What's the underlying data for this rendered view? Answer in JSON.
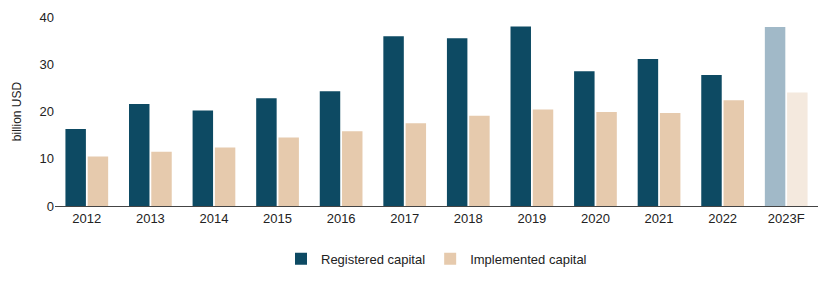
{
  "chart_data": {
    "type": "bar",
    "categories": [
      "2012",
      "2013",
      "2014",
      "2015",
      "2016",
      "2017",
      "2018",
      "2019",
      "2020",
      "2021",
      "2022",
      "2023F"
    ],
    "series": [
      {
        "name": "Registered capital",
        "values": [
          16.3,
          21.6,
          20.2,
          22.8,
          24.3,
          35.9,
          35.5,
          38.0,
          28.5,
          31.1,
          27.7,
          37.9
        ],
        "colors": [
          "#0d4a63",
          "#0d4a63",
          "#0d4a63",
          "#0d4a63",
          "#0d4a63",
          "#0d4a63",
          "#0d4a63",
          "#0d4a63",
          "#0d4a63",
          "#0d4a63",
          "#0d4a63",
          "#a1b9c8"
        ]
      },
      {
        "name": "Implemented capital",
        "values": [
          10.5,
          11.5,
          12.4,
          14.5,
          15.8,
          17.5,
          19.1,
          20.4,
          19.9,
          19.7,
          22.4,
          24.0
        ],
        "colors": [
          "#e6caad",
          "#e6caad",
          "#e6caad",
          "#e6caad",
          "#e6caad",
          "#e6caad",
          "#e6caad",
          "#e6caad",
          "#e6caad",
          "#e6caad",
          "#e6caad",
          "#f4e9de"
        ]
      }
    ],
    "y_label": "billion USD",
    "ylim": [
      0,
      40
    ],
    "yticks": [
      0,
      10,
      20,
      30,
      40
    ],
    "grid": false,
    "legend": "bottom"
  }
}
